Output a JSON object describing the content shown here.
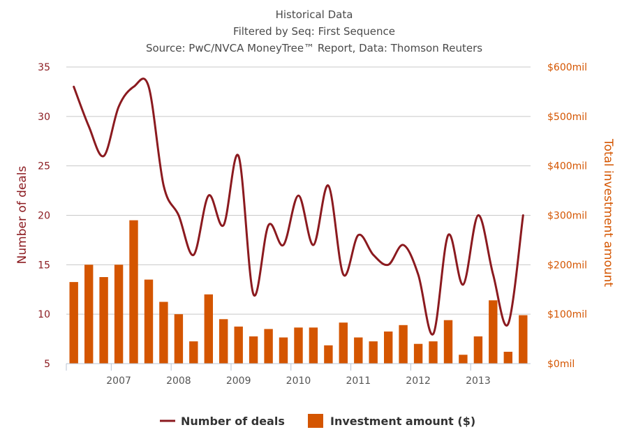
{
  "chart_data": {
    "type": "bar+line",
    "title": "Historical Data",
    "subtitle_lines": [
      "Filtered by Seq: First Sequence",
      "Source: PwC/NVCA MoneyTree™ Report, Data: Thomson Reuters"
    ],
    "y_left": {
      "label": "Number of deals",
      "range": [
        5,
        35
      ],
      "ticks": [
        "5",
        "10",
        "15",
        "20",
        "25",
        "30",
        "35"
      ]
    },
    "y_right": {
      "label": "Total investment amount",
      "range": [
        0,
        600
      ],
      "ticks": [
        "$0mil",
        "$100mil",
        "$200mil",
        "$300mil",
        "$400mil",
        "$500mil",
        "$600mil"
      ]
    },
    "x_ticks": [
      "2007",
      "2008",
      "2009",
      "2010",
      "2011",
      "2012",
      "2013"
    ],
    "x_range_start": "2006 Q2",
    "quarters": [
      "2006 Q2",
      "2006 Q3",
      "2006 Q4",
      "2007 Q1",
      "2007 Q2",
      "2007 Q3",
      "2007 Q4",
      "2008 Q1",
      "2008 Q2",
      "2008 Q3",
      "2008 Q4",
      "2009 Q1",
      "2009 Q2",
      "2009 Q3",
      "2009 Q4",
      "2010 Q1",
      "2010 Q2",
      "2010 Q3",
      "2010 Q4",
      "2011 Q1",
      "2011 Q2",
      "2011 Q3",
      "2011 Q4",
      "2012 Q1",
      "2012 Q2",
      "2012 Q3",
      "2012 Q4",
      "2013 Q1",
      "2013 Q2",
      "2013 Q3",
      "2013 Q4"
    ],
    "series": [
      {
        "name": "Number of deals",
        "type": "line",
        "axis": "left",
        "values": [
          33,
          29,
          26,
          31,
          33,
          33,
          23,
          20,
          16,
          22,
          19,
          26,
          12,
          19,
          17,
          22,
          17,
          23,
          14,
          18,
          16,
          15,
          17,
          14,
          8,
          18,
          13,
          20,
          14,
          9,
          20
        ]
      },
      {
        "name": "Investment amount ($)",
        "type": "bar",
        "axis": "right",
        "values": [
          165,
          200,
          175,
          200,
          290,
          170,
          125,
          100,
          45,
          140,
          90,
          75,
          55,
          70,
          53,
          73,
          73,
          37,
          83,
          53,
          45,
          65,
          78,
          40,
          45,
          88,
          18,
          55,
          128,
          24,
          98
        ]
      }
    ],
    "grid": true,
    "legend_position": "bottom-center"
  },
  "legend": {
    "line_label": "Number of deals",
    "bar_label": "Investment amount ($)"
  },
  "colors": {
    "line": "#8b1a1f",
    "bar": "#d45500"
  }
}
